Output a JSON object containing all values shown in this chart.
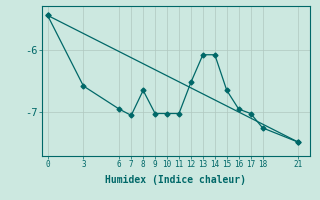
{
  "xlabel": "Humidex (Indice chaleur)",
  "bg_color": "#cce8e0",
  "line_color": "#006868",
  "grid_color": "#b0c8c0",
  "xticks": [
    0,
    3,
    6,
    7,
    8,
    9,
    10,
    11,
    12,
    13,
    14,
    15,
    16,
    17,
    18,
    21
  ],
  "xlim": [
    -0.5,
    22
  ],
  "ylim": [
    -7.7,
    -5.3
  ],
  "yticks": [
    -7,
    -6
  ],
  "ytick_labels": [
    "-7",
    "-6"
  ],
  "line1_x": [
    0,
    3,
    6,
    7,
    8,
    9,
    10,
    11,
    12,
    13,
    14,
    15,
    16,
    17,
    18,
    21
  ],
  "line1_y": [
    -5.45,
    -6.58,
    -6.95,
    -7.05,
    -6.65,
    -7.02,
    -7.02,
    -7.02,
    -6.52,
    -6.08,
    -6.08,
    -6.65,
    -6.95,
    -7.02,
    -7.25,
    -7.48
  ],
  "line2_x": [
    0,
    21
  ],
  "line2_y": [
    -5.45,
    -7.48
  ]
}
